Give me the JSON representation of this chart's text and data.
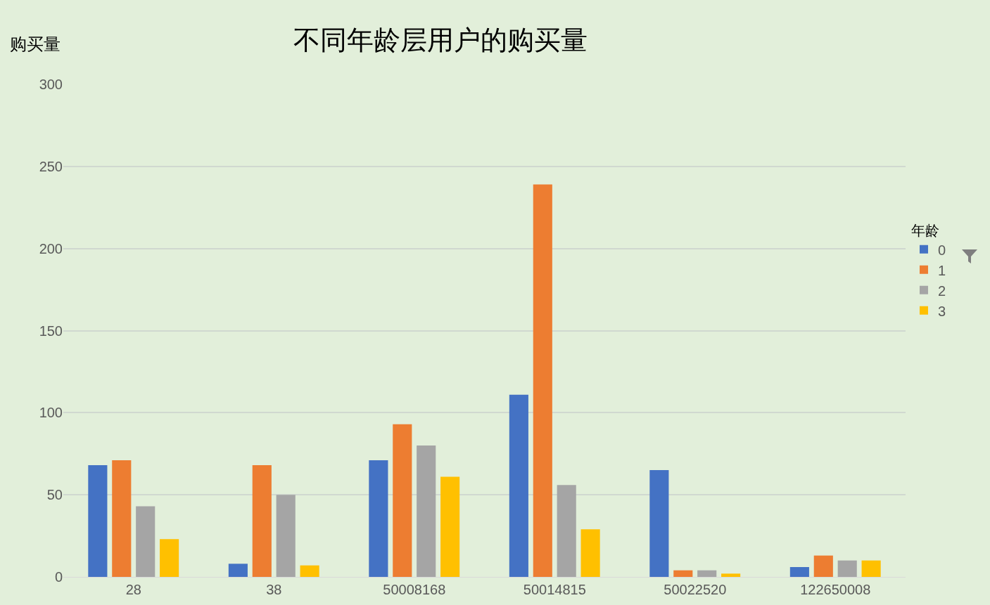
{
  "chart_data": {
    "type": "bar",
    "title": "不同年龄层用户的购买量",
    "ylabel": "购买量",
    "legend_title": "年龄",
    "categories": [
      "28",
      "38",
      "50008168",
      "50014815",
      "50022520",
      "122650008"
    ],
    "series": [
      {
        "name": "0",
        "color": "#4472c4",
        "values": [
          68,
          8,
          71,
          111,
          65,
          6
        ]
      },
      {
        "name": "1",
        "color": "#ed7d31",
        "values": [
          71,
          68,
          93,
          239,
          4,
          13
        ]
      },
      {
        "name": "2",
        "color": "#a5a5a5",
        "values": [
          43,
          50,
          80,
          56,
          4,
          10
        ]
      },
      {
        "name": "3",
        "color": "#ffc000",
        "values": [
          23,
          7,
          61,
          29,
          2,
          10
        ]
      }
    ],
    "ylim": [
      0,
      300
    ],
    "yticks": [
      0,
      50,
      100,
      150,
      200,
      250,
      300
    ],
    "grid": "y",
    "legend": "right"
  }
}
